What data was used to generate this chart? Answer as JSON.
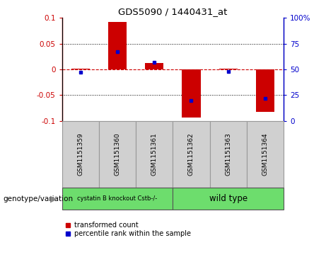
{
  "title": "GDS5090 / 1440431_at",
  "samples": [
    "GSM1151359",
    "GSM1151360",
    "GSM1151361",
    "GSM1151362",
    "GSM1151363",
    "GSM1151364"
  ],
  "red_bars": [
    0.001,
    0.092,
    0.013,
    -0.093,
    0.001,
    -0.082
  ],
  "blue_dots": [
    47,
    67,
    57,
    20,
    48,
    22
  ],
  "ylim": [
    -0.1,
    0.1
  ],
  "y2lim": [
    0,
    100
  ],
  "yticks": [
    -0.1,
    -0.05,
    0.0,
    0.05,
    0.1
  ],
  "y2ticks": [
    0,
    25,
    50,
    75,
    100
  ],
  "ytick_labels": [
    "-0.1",
    "-0.05",
    "0",
    "0.05",
    "0.1"
  ],
  "y2tick_labels": [
    "0",
    "25",
    "50",
    "75",
    "100%"
  ],
  "genotype_label": "genotype/variation",
  "legend_red": "transformed count",
  "legend_blue": "percentile rank within the sample",
  "red_color": "#cc0000",
  "blue_color": "#0000cc",
  "bar_width": 0.5,
  "zero_line_color": "#cc0000",
  "group1_label": "cystatin B knockout Cstb-/-",
  "group2_label": "wild type",
  "group_color": "#6ddd6d",
  "sample_box_color": "#d0d0d0",
  "sample_box_edge": "#999999"
}
